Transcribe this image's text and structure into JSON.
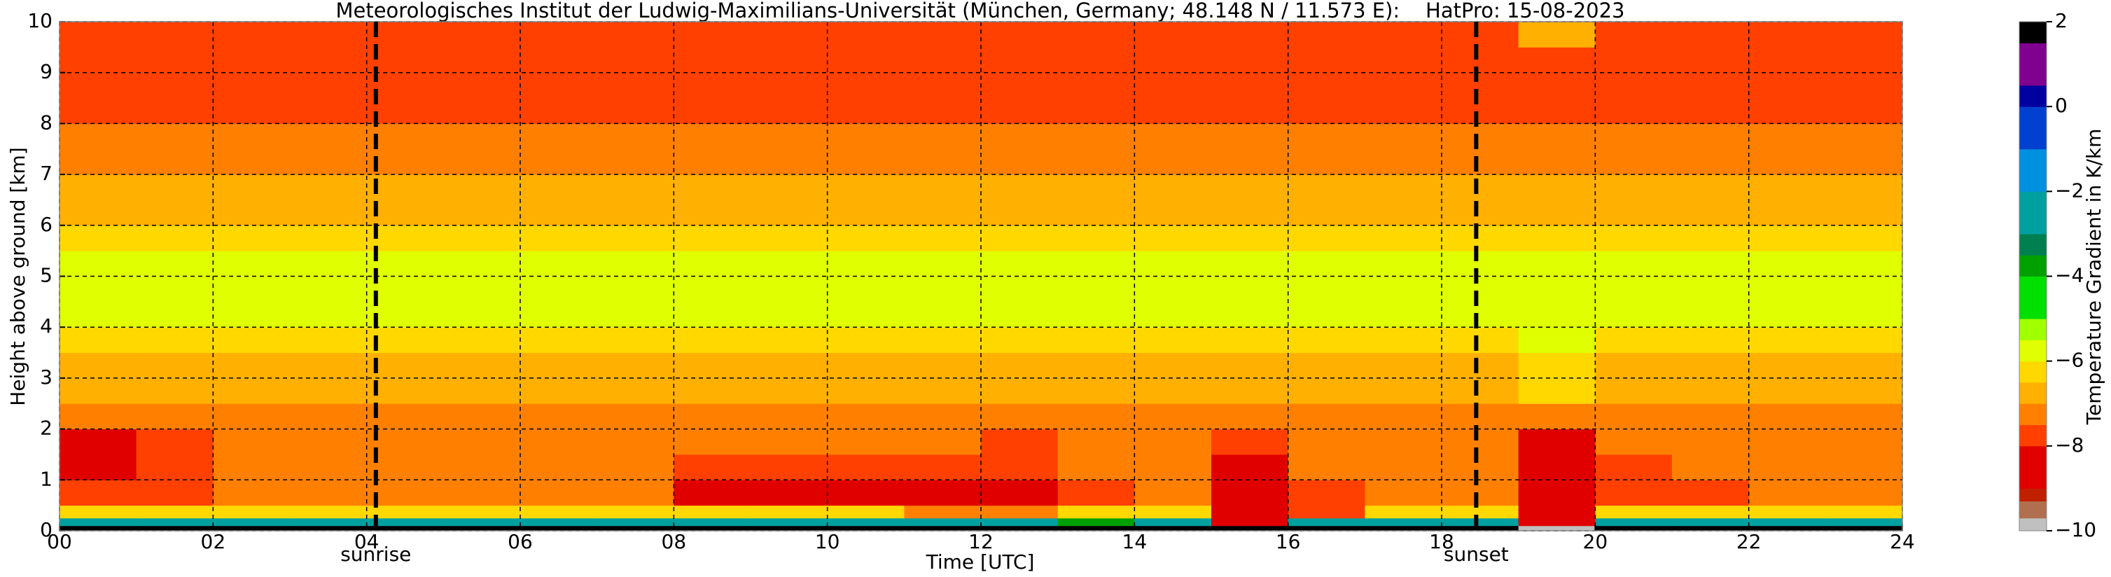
{
  "chart_data": {
    "type": "heatmap",
    "title": "Meteorologisches Institut der Ludwig-Maximilians-Universität (München, Germany; 48.148 N / 11.573 E):    HatPro: 15-08-2023",
    "xlabel": "Time [UTC]",
    "ylabel": "Height above ground [km]",
    "xlim": [
      0,
      24
    ],
    "ylim": [
      0,
      10
    ],
    "xticks": [
      {
        "value": 0,
        "label": "00"
      },
      {
        "value": 2,
        "label": "02"
      },
      {
        "value": 4,
        "label": "04"
      },
      {
        "value": 6,
        "label": "06"
      },
      {
        "value": 8,
        "label": "08"
      },
      {
        "value": 10,
        "label": "10"
      },
      {
        "value": 12,
        "label": "12"
      },
      {
        "value": 14,
        "label": "14"
      },
      {
        "value": 16,
        "label": "16"
      },
      {
        "value": 18,
        "label": "18"
      },
      {
        "value": 20,
        "label": "20"
      },
      {
        "value": 22,
        "label": "22"
      },
      {
        "value": 24,
        "label": "24"
      }
    ],
    "yticks": [
      0,
      1,
      2,
      3,
      4,
      5,
      6,
      7,
      8,
      9,
      10
    ],
    "grid": true,
    "x_edges": [
      0,
      1,
      2,
      3,
      4,
      5,
      6,
      7,
      8,
      9,
      10,
      11,
      12,
      13,
      14,
      15,
      16,
      17,
      18,
      19,
      20,
      21,
      22,
      23,
      24
    ],
    "y_edges": [
      0,
      0.1,
      0.25,
      0.5,
      1,
      1.5,
      2,
      2.5,
      3,
      3.5,
      4,
      4.5,
      5,
      5.5,
      6,
      7,
      8,
      9,
      9.5,
      10
    ],
    "z": [
      [
        2,
        2,
        2,
        2,
        2,
        2,
        2,
        2,
        2,
        2,
        2,
        2,
        2,
        2,
        2,
        2,
        2,
        2,
        2,
        -9.8,
        2,
        2,
        2,
        2
      ],
      [
        -2.5,
        -2.5,
        -2.5,
        -2.5,
        -2.5,
        -2.5,
        -2.5,
        -2.5,
        -2.5,
        -2.5,
        -2.5,
        -2.5,
        -2.5,
        -4,
        -2.5,
        -8.5,
        -2.5,
        -2.5,
        -2.5,
        -8.8,
        -2.5,
        -2.5,
        -2.5,
        -2.5
      ],
      [
        -6.5,
        -6.5,
        -6.5,
        -6.5,
        -6.5,
        -6.5,
        -6.5,
        -6.5,
        -6.5,
        -6.5,
        -6.5,
        -7.5,
        -7.5,
        -6.5,
        -6.5,
        -8.6,
        -7.8,
        -6.5,
        -6.5,
        -8.7,
        -6.5,
        -6.5,
        -6.5,
        -6.5
      ],
      [
        -7.8,
        -7.8,
        -7.5,
        -7.5,
        -7.5,
        -7.5,
        -7.5,
        -7.5,
        -8.2,
        -8.2,
        -8.2,
        -8.2,
        -8.5,
        -7.6,
        -7.2,
        -8.8,
        -7.6,
        -7.5,
        -7.5,
        -8.8,
        -7.8,
        -7.6,
        -7.5,
        -7.5
      ],
      [
        -8.3,
        -7.8,
        -7.4,
        -7.4,
        -7.4,
        -7.4,
        -7.4,
        -7.4,
        -7.7,
        -7.7,
        -8,
        -8,
        -8,
        -7.5,
        -7.2,
        -8.6,
        -7.4,
        -7.3,
        -7.3,
        -8.6,
        -7.6,
        -7.3,
        -7.3,
        -7.3
      ],
      [
        -8.2,
        -7.6,
        -7.2,
        -7.2,
        -7.2,
        -7.2,
        -7.2,
        -7.2,
        -7.2,
        -7.2,
        -7.2,
        -7.2,
        -7.9,
        -7.2,
        -7.2,
        -8,
        -7.2,
        -7.2,
        -7.2,
        -8.2,
        -7.2,
        -7.2,
        -7.2,
        -7.2
      ],
      [
        -7.1,
        -7.1,
        -7.1,
        -7.1,
        -7.1,
        -7.1,
        -7.1,
        -7.1,
        -7.1,
        -7.1,
        -7.1,
        -7.1,
        -7.1,
        -7.1,
        -7.1,
        -7.1,
        -7.1,
        -7.1,
        -7.1,
        -7.5,
        -7.1,
        -7.1,
        -7.1,
        -7.1
      ],
      [
        -6.9,
        -6.9,
        -6.9,
        -6.9,
        -6.9,
        -6.9,
        -6.9,
        -6.9,
        -6.9,
        -6.9,
        -6.9,
        -6.9,
        -6.9,
        -6.9,
        -6.9,
        -6.9,
        -6.9,
        -6.9,
        -6.9,
        -6.5,
        -6.9,
        -6.9,
        -6.9,
        -6.9
      ],
      [
        -6.6,
        -6.6,
        -6.6,
        -6.6,
        -6.6,
        -6.6,
        -6.6,
        -6.6,
        -6.6,
        -6.6,
        -6.6,
        -6.6,
        -6.6,
        -6.6,
        -6.6,
        -6.6,
        -6.6,
        -6.6,
        -6.6,
        -6.2,
        -6.6,
        -6.6,
        -6.6,
        -6.6
      ],
      [
        -6.3,
        -6.3,
        -6.3,
        -6.3,
        -6.3,
        -6.3,
        -6.3,
        -6.3,
        -6.3,
        -6.3,
        -6.3,
        -6.3,
        -6.3,
        -6.3,
        -6.3,
        -6.3,
        -6.3,
        -6.3,
        -6.3,
        -5.8,
        -6.3,
        -6.3,
        -6.3,
        -6.3
      ],
      [
        -5.8,
        -5.8,
        -5.8,
        -5.8,
        -5.8,
        -5.8,
        -5.8,
        -5.8,
        -5.8,
        -5.8,
        -5.8,
        -5.8,
        -5.8,
        -5.8,
        -5.8,
        -5.8,
        -5.8,
        -5.8,
        -5.8,
        -5.8,
        -5.8,
        -5.8,
        -5.8,
        -5.8
      ],
      [
        -5.8,
        -5.8,
        -5.8,
        -5.8,
        -5.8,
        -5.8,
        -5.8,
        -5.8,
        -5.8,
        -5.8,
        -5.8,
        -5.8,
        -5.8,
        -5.8,
        -5.8,
        -5.8,
        -5.8,
        -5.8,
        -5.8,
        -5.8,
        -5.8,
        -5.8,
        -5.8,
        -5.8
      ],
      [
        -5.9,
        -5.9,
        -5.9,
        -5.9,
        -5.9,
        -5.9,
        -5.9,
        -5.9,
        -5.9,
        -5.9,
        -5.9,
        -5.9,
        -5.9,
        -5.9,
        -5.9,
        -5.9,
        -5.9,
        -5.9,
        -5.9,
        -5.9,
        -5.9,
        -5.9,
        -5.9,
        -5.9
      ],
      [
        -6.4,
        -6.4,
        -6.4,
        -6.4,
        -6.4,
        -6.4,
        -6.4,
        -6.4,
        -6.4,
        -6.4,
        -6.4,
        -6.4,
        -6.4,
        -6.4,
        -6.4,
        -6.4,
        -6.4,
        -6.4,
        -6.4,
        -6.4,
        -6.4,
        -6.4,
        -6.4,
        -6.4
      ],
      [
        -6.7,
        -6.7,
        -6.7,
        -6.7,
        -6.7,
        -6.7,
        -6.7,
        -6.7,
        -6.7,
        -6.7,
        -6.7,
        -6.7,
        -6.7,
        -6.7,
        -6.7,
        -6.7,
        -6.7,
        -6.7,
        -6.7,
        -6.7,
        -6.7,
        -6.7,
        -6.7,
        -6.7
      ],
      [
        -7.1,
        -7.1,
        -7.1,
        -7.1,
        -7.1,
        -7.1,
        -7.1,
        -7.1,
        -7.1,
        -7.1,
        -7.1,
        -7.1,
        -7.1,
        -7.1,
        -7.1,
        -7.1,
        -7.1,
        -7.1,
        -7.1,
        -7.1,
        -7.1,
        -7.1,
        -7.1,
        -7.1
      ],
      [
        -7.7,
        -7.7,
        -7.7,
        -7.7,
        -7.7,
        -7.7,
        -7.7,
        -7.7,
        -7.7,
        -7.7,
        -7.7,
        -7.7,
        -7.7,
        -7.7,
        -7.7,
        -7.7,
        -7.7,
        -7.7,
        -7.7,
        -7.7,
        -7.7,
        -7.7,
        -7.7,
        -7.7
      ],
      [
        -7.6,
        -7.6,
        -7.6,
        -7.6,
        -7.6,
        -7.6,
        -7.6,
        -7.6,
        -7.6,
        -7.6,
        -7.6,
        -7.6,
        -7.6,
        -7.6,
        -7.6,
        -7.6,
        -7.6,
        -7.6,
        -7.6,
        -7.6,
        -7.6,
        -7.6,
        -7.6,
        -7.6
      ],
      [
        -7.8,
        -7.8,
        -7.8,
        -7.8,
        -7.8,
        -7.8,
        -7.8,
        -7.8,
        -7.8,
        -7.8,
        -7.8,
        -7.8,
        -7.8,
        -7.8,
        -7.8,
        -7.8,
        -7.8,
        -7.8,
        -7.8,
        -6.8,
        -7.8,
        -7.8,
        -7.8,
        -7.8
      ]
    ],
    "markers": [
      {
        "x": 4.12,
        "label": "sunrise"
      },
      {
        "x": 18.45,
        "label": "sunset"
      }
    ],
    "colorbar": {
      "label": "Temperature Gradient in K/km",
      "range": [
        -10,
        2
      ],
      "ticks": [
        {
          "value": 2,
          "label": "2"
        },
        {
          "value": 0,
          "label": "0"
        },
        {
          "value": -2,
          "label": "−2"
        },
        {
          "value": -4,
          "label": "−4"
        },
        {
          "value": -6,
          "label": "−6"
        },
        {
          "value": -8,
          "label": "−8"
        },
        {
          "value": -10,
          "label": "−10"
        }
      ],
      "levels": [
        -10,
        -9.7,
        -9.3,
        -9,
        -8,
        -7.5,
        -7,
        -6.5,
        -6,
        -5.5,
        -5,
        -4,
        -3.5,
        -3,
        -2,
        -1,
        0,
        0.5,
        1.5,
        2
      ],
      "colors": [
        "#c0c0c0",
        "#b07050",
        "#c02000",
        "#e00000",
        "#ff4000",
        "#ff8000",
        "#ffb000",
        "#ffd800",
        "#e0ff00",
        "#a0ff00",
        "#00e000",
        "#00a000",
        "#008050",
        "#00a0a0",
        "#0090e0",
        "#0040d0",
        "#0000a0",
        "#800090",
        "#000000"
      ]
    }
  }
}
